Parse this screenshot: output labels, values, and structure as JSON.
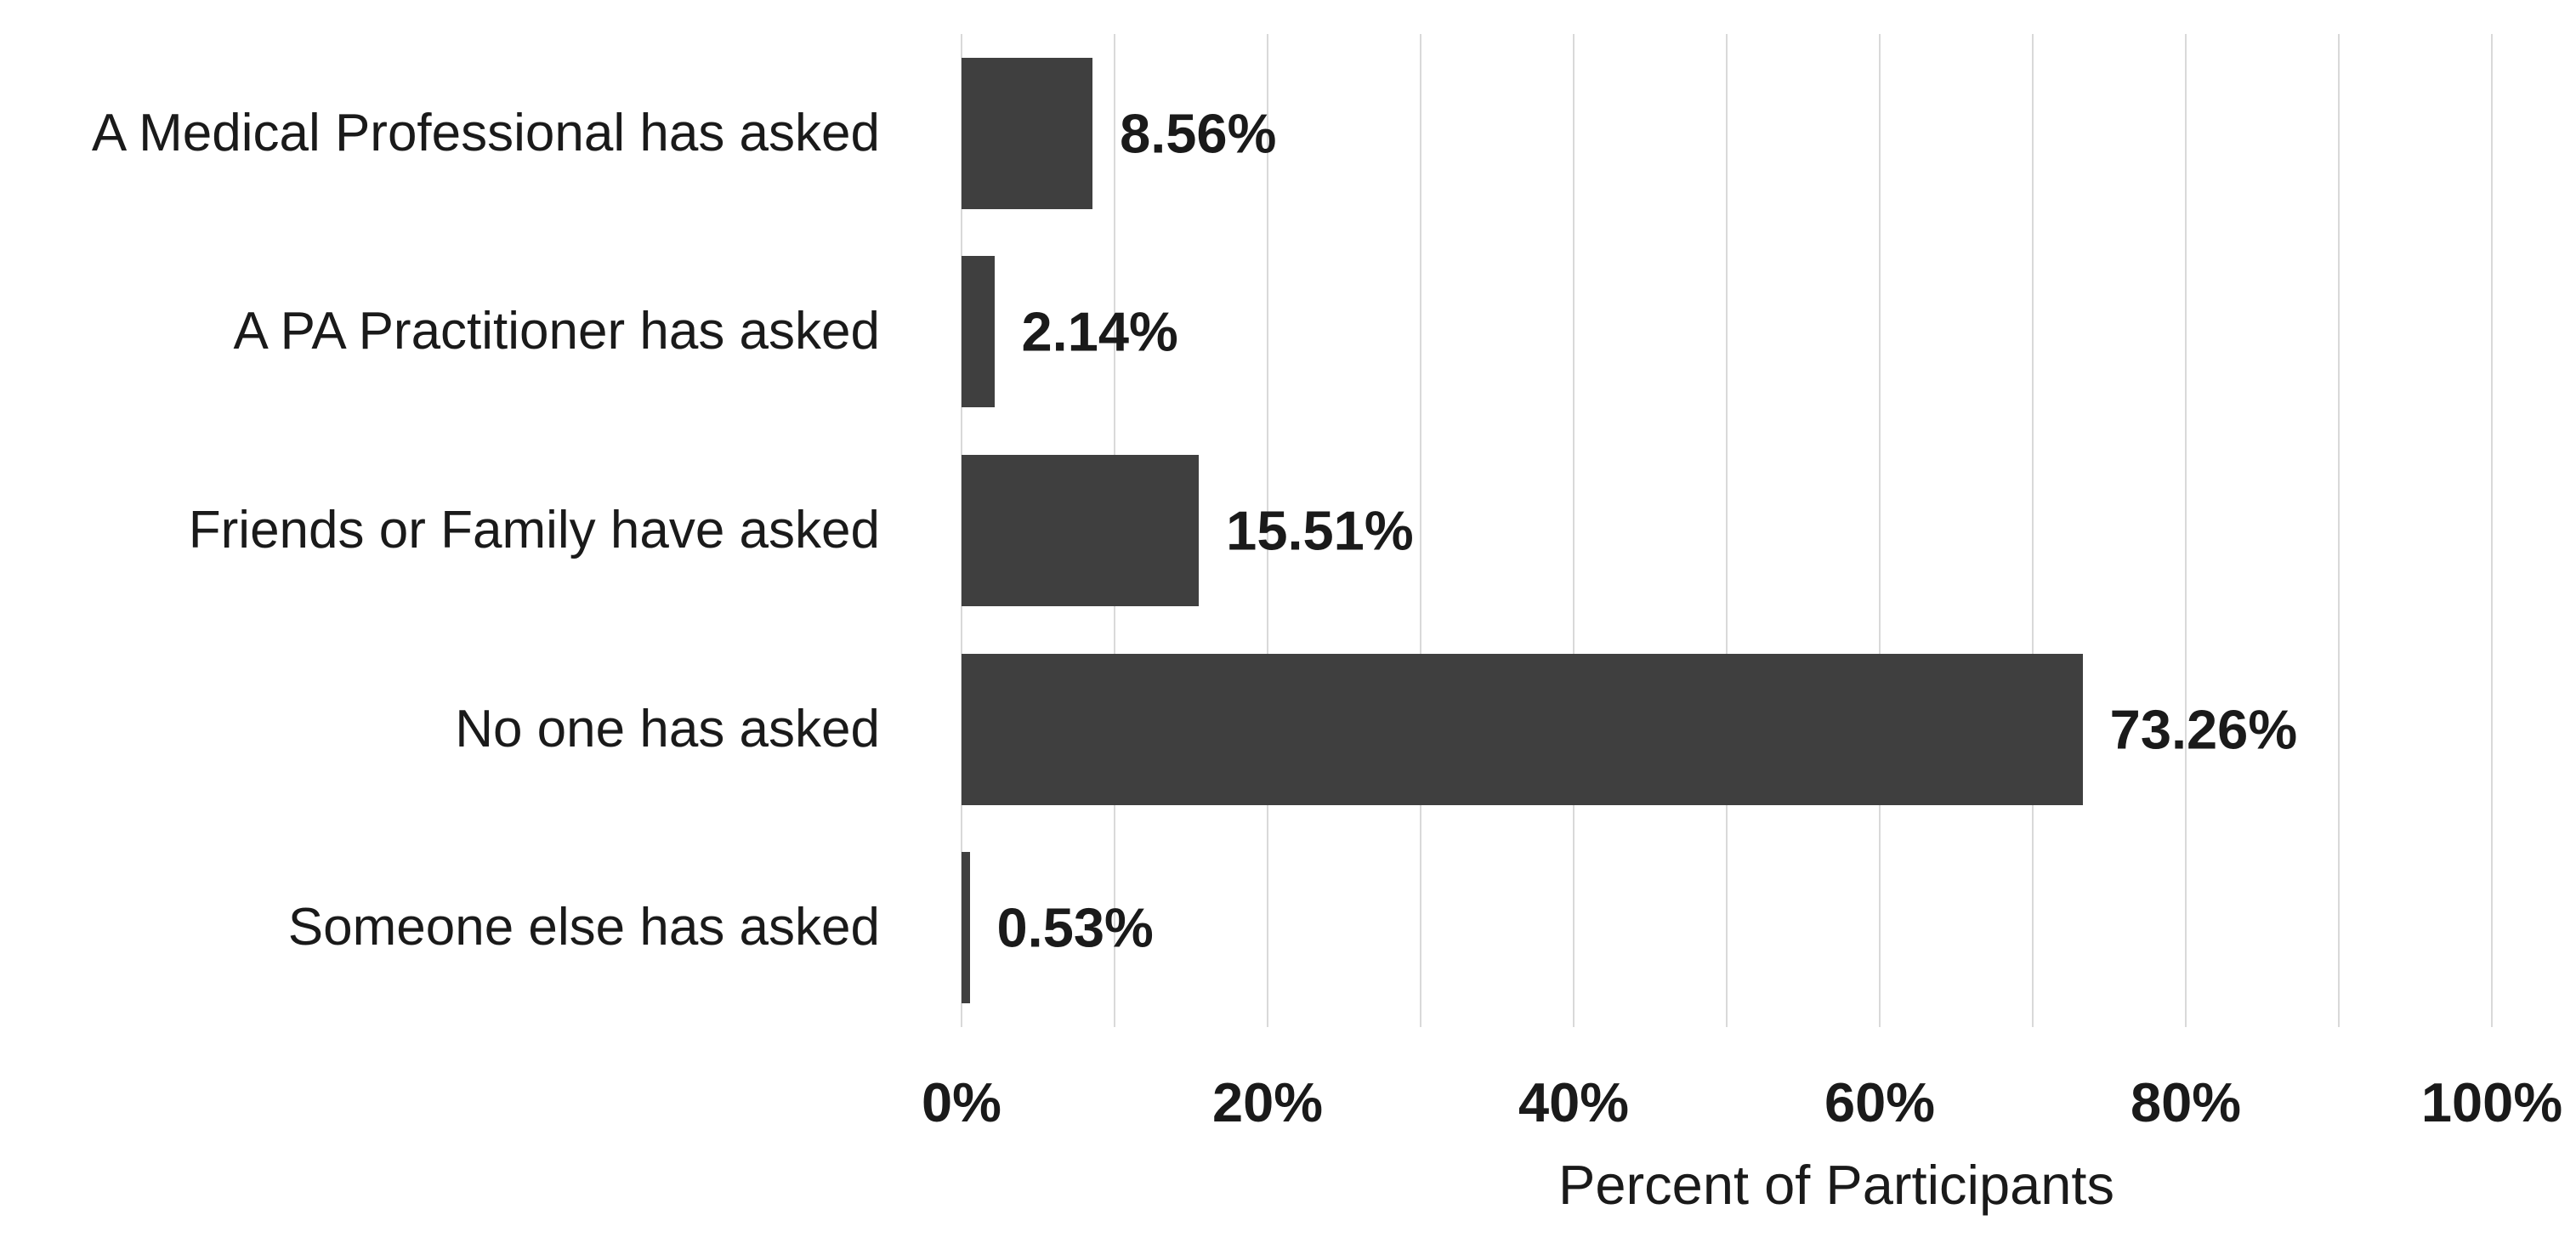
{
  "chart_data": {
    "type": "bar",
    "orientation": "horizontal",
    "title": "",
    "xlabel": "Percent of Participants",
    "ylabel": "",
    "categories": [
      "A Medical Professional has asked",
      "A PA Practitioner has asked",
      "Friends or Family have asked",
      "No one has asked",
      "Someone else has asked"
    ],
    "values": [
      8.56,
      2.14,
      15.51,
      73.26,
      0.53
    ],
    "value_labels": [
      "8.56%",
      "2.14%",
      "15.51%",
      "73.26%",
      "0.53%"
    ],
    "xlim": [
      0,
      100
    ],
    "x_ticks": [
      0,
      20,
      40,
      60,
      80,
      100
    ],
    "x_tick_labels": [
      "0%",
      "20%",
      "40%",
      "60%",
      "80%",
      "100%"
    ],
    "gridline_step": 10,
    "grid": true,
    "legend": false,
    "bar_color": "#3f3f3f",
    "gridline_color": "#d9d9d9",
    "text_color": "#1a1a1a",
    "background_color": "#ffffff"
  }
}
